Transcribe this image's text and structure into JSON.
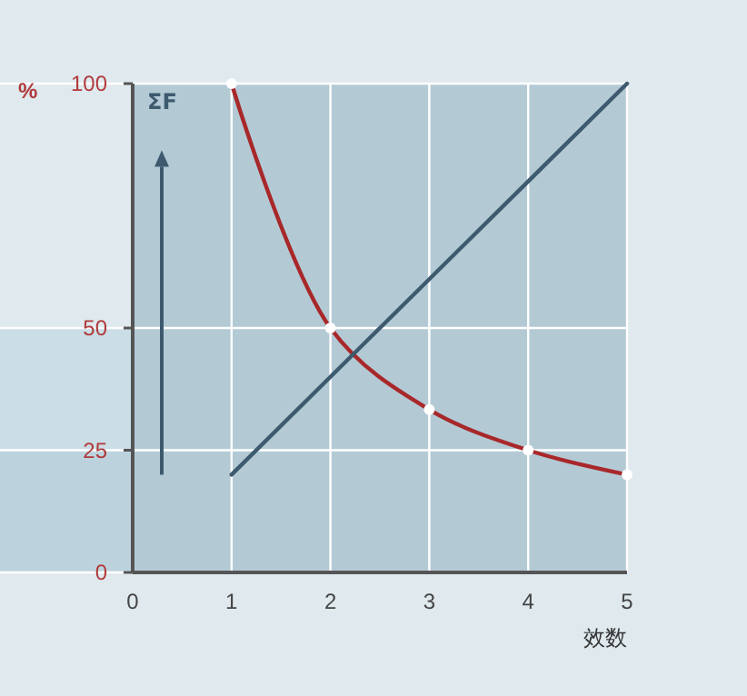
{
  "chart_data": {
    "type": "line",
    "xlabel": "效数",
    "ylabel": "%",
    "x": [
      1,
      2,
      3,
      4,
      5
    ],
    "series": [
      {
        "name": null,
        "color": "#a8282a",
        "values": [
          100,
          50,
          33.3,
          25,
          20
        ],
        "marker": "circle"
      },
      {
        "name": "ΣF",
        "color": "#3d5a6e",
        "values": [
          20,
          40,
          60,
          80,
          100
        ],
        "marker": "none"
      }
    ],
    "xlim": [
      0,
      5
    ],
    "ylim": [
      0,
      100
    ],
    "xticks": [
      0,
      1,
      2,
      3,
      4,
      5
    ],
    "yticks": [
      0,
      25,
      50,
      100
    ],
    "grid": true,
    "line_style": "solid"
  }
}
